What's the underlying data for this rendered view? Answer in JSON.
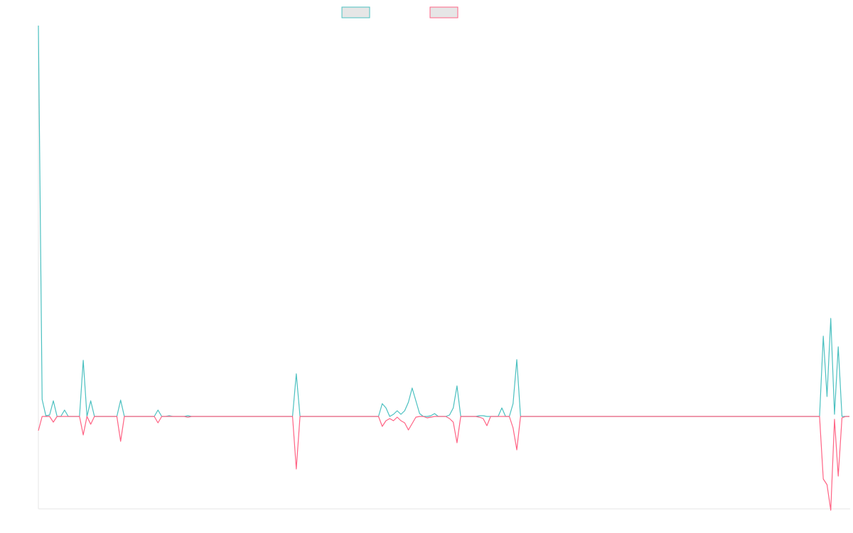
{
  "chart_data": {
    "type": "line",
    "ylim": [
      -130,
      550
    ],
    "series": [
      {
        "color": "#4bc0c0",
        "values": [
          550,
          24,
          1,
          2,
          22,
          0,
          0,
          9,
          0,
          0,
          0,
          0,
          79,
          0,
          22,
          0,
          0,
          0,
          0,
          0,
          0,
          0,
          23,
          0,
          0,
          0,
          0,
          0,
          0,
          0,
          0,
          0,
          9,
          0,
          0,
          1,
          0,
          0,
          0,
          0,
          1,
          0,
          0,
          0,
          0,
          0,
          0,
          0,
          0,
          0,
          0,
          0,
          0,
          0,
          0,
          0,
          0,
          0,
          0,
          0,
          0,
          0,
          0,
          0,
          0,
          0,
          0,
          0,
          0,
          60,
          0,
          0,
          0,
          0,
          0,
          0,
          0,
          0,
          0,
          0,
          0,
          0,
          0,
          0,
          0,
          0,
          0,
          0,
          0,
          0,
          0,
          0,
          18,
          12,
          0,
          3,
          8,
          3,
          8,
          20,
          40,
          22,
          4,
          0,
          0,
          1,
          4,
          0,
          0,
          0,
          2,
          12,
          43,
          0,
          0,
          0,
          0,
          0,
          1,
          1,
          0,
          0,
          0,
          0,
          12,
          0,
          0,
          18,
          80,
          0,
          0,
          0,
          0,
          0,
          0,
          0,
          0,
          0,
          0,
          0,
          0,
          0,
          0,
          0,
          0,
          0,
          0,
          0,
          0,
          0,
          0,
          0,
          0,
          0,
          0,
          0,
          0,
          0,
          0,
          0,
          0,
          0,
          0,
          0,
          0,
          0,
          0,
          0,
          0,
          0,
          0,
          0,
          0,
          0,
          0,
          0,
          0,
          0,
          0,
          0,
          0,
          0,
          0,
          0,
          0,
          0,
          0,
          0,
          0,
          0,
          0,
          0,
          0,
          0,
          0,
          0,
          0,
          0,
          0,
          0,
          0,
          0,
          0,
          0,
          0,
          0,
          0,
          0,
          0,
          0,
          113,
          28,
          138,
          3,
          98,
          0,
          0,
          0
        ]
      },
      {
        "color": "#ff6384",
        "values": [
          -20,
          0,
          0,
          0,
          -8,
          0,
          0,
          0,
          0,
          0,
          0,
          0,
          -26,
          0,
          -11,
          0,
          0,
          0,
          0,
          0,
          0,
          0,
          -35,
          0,
          0,
          0,
          0,
          0,
          0,
          0,
          0,
          0,
          -9,
          0,
          0,
          0,
          0,
          0,
          0,
          0,
          -1,
          0,
          0,
          0,
          0,
          0,
          0,
          0,
          0,
          0,
          0,
          0,
          0,
          0,
          0,
          0,
          0,
          0,
          0,
          0,
          0,
          0,
          0,
          0,
          0,
          0,
          0,
          0,
          0,
          -74,
          0,
          0,
          0,
          0,
          0,
          0,
          0,
          0,
          0,
          0,
          0,
          0,
          0,
          0,
          0,
          0,
          0,
          0,
          0,
          0,
          0,
          0,
          -14,
          -6,
          -3,
          -6,
          -1,
          -6,
          -9,
          -19,
          -10,
          -1,
          0,
          0,
          -2,
          -1,
          0,
          0,
          0,
          0,
          -3,
          -8,
          -37,
          0,
          0,
          0,
          0,
          0,
          -1,
          -3,
          -13,
          0,
          0,
          0,
          0,
          0,
          0,
          -16,
          -47,
          0,
          0,
          0,
          0,
          0,
          0,
          0,
          0,
          0,
          0,
          0,
          0,
          0,
          0,
          0,
          0,
          0,
          0,
          0,
          0,
          0,
          0,
          0,
          0,
          0,
          0,
          0,
          0,
          0,
          0,
          0,
          0,
          0,
          0,
          0,
          0,
          0,
          0,
          0,
          0,
          0,
          0,
          0,
          0,
          0,
          0,
          0,
          0,
          0,
          0,
          0,
          0,
          0,
          0,
          0,
          0,
          0,
          0,
          0,
          0,
          0,
          0,
          0,
          0,
          0,
          0,
          0,
          0,
          0,
          0,
          0,
          0,
          0,
          0,
          0,
          0,
          0,
          0,
          0,
          0,
          0,
          -88,
          -96,
          -132,
          -4,
          -84,
          -2,
          0,
          0
        ]
      }
    ]
  }
}
